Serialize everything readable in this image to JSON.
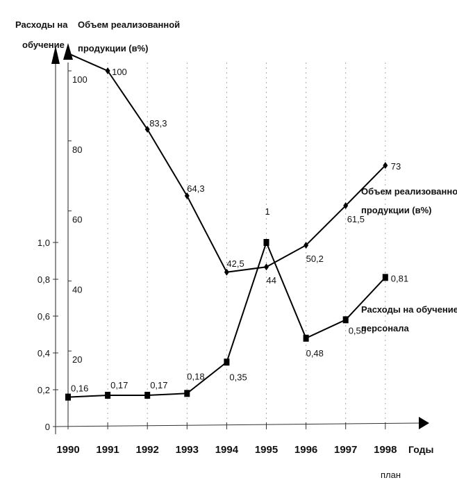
{
  "chart_data": {
    "type": "line",
    "x": [
      "1990",
      "1991",
      "1992",
      "1993",
      "1994",
      "1995",
      "1996",
      "1997",
      "1998"
    ],
    "x_note": "план",
    "xlabel": "Годы",
    "y_left": {
      "label_line1": "Расходы на",
      "label_line2": "обучение",
      "ticks": [
        "0",
        "0,2",
        "0,4",
        "0,6",
        "0,8",
        "1,0"
      ],
      "tick_values": [
        0,
        0.2,
        0.4,
        0.6,
        0.8,
        1.0
      ]
    },
    "y_right": {
      "label_line1": "Объем реализованной",
      "label_line2": "продукции (в%)",
      "ticks": [
        "20",
        "40",
        "60",
        "80",
        "100"
      ],
      "tick_values": [
        20,
        40,
        60,
        80,
        100
      ]
    },
    "series": [
      {
        "name_line1": "Объем реализованной",
        "name_line2": "продукции (в%)",
        "axis": "right",
        "marker": "diamond",
        "values": [
          105,
          100,
          83.3,
          64.3,
          42.5,
          44,
          50.2,
          61.5,
          73
        ],
        "labels": [
          "",
          "100",
          "83,3",
          "64,3",
          "42,5",
          "44",
          "50,2",
          "61,5",
          "73"
        ]
      },
      {
        "name_line1": "Расходы на обучение",
        "name_line2": "персонала",
        "axis": "left",
        "marker": "square",
        "values": [
          0.16,
          0.17,
          0.17,
          0.18,
          0.35,
          1,
          0.48,
          0.58,
          0.81
        ],
        "labels": [
          "0,16",
          "0,17",
          "0,17",
          "0,18",
          "0,35",
          "1",
          "0,48",
          "0,58",
          "0,81"
        ]
      }
    ],
    "grid": "vertical dotted"
  }
}
